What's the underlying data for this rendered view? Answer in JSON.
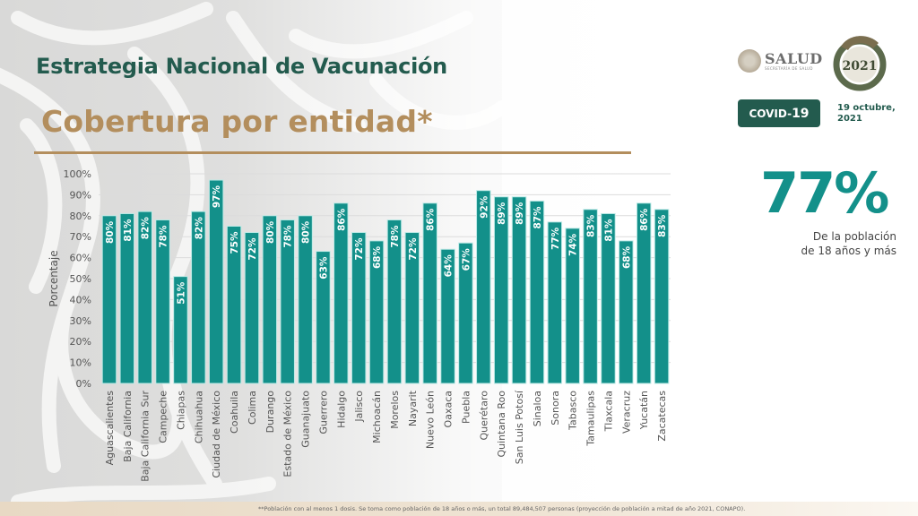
{
  "header": {
    "title": "Estrategia Nacional de Vacunación",
    "subtitle": "Cobertura por entidad*"
  },
  "logos": {
    "salud_word": "SALUD",
    "salud_small": "SECRETARÍA DE SALUD",
    "mexico_year": "2021"
  },
  "badge": {
    "prefix": "COVID-",
    "number": "19"
  },
  "date": {
    "line1": "19 octubre,",
    "line2": "2021"
  },
  "kpi": {
    "value": "77%",
    "caption_line1": "De la población",
    "caption_line2": "de 18 años y más"
  },
  "footnote": "**Población con al menos 1 dosis. Se toma como población de 18 años o más, un total 89,484,507 personas (proyección de población a mitad de año 2021, CONAPO).",
  "colors": {
    "bar": "#13908a",
    "title_green": "#235b4e",
    "gold": "#b38e5d",
    "badge_bg": "#235b4e"
  },
  "chart_data": {
    "type": "bar",
    "title": "Cobertura por entidad*",
    "xlabel": "",
    "ylabel": "Porcentaje",
    "ylim": [
      0,
      100
    ],
    "yticks": [
      "0%",
      "10%",
      "20%",
      "30%",
      "40%",
      "50%",
      "60%",
      "70%",
      "80%",
      "90%",
      "100%"
    ],
    "grid": true,
    "legend": null,
    "value_labels_rotated": true,
    "categories": [
      "Aguascalientes",
      "Baja California",
      "Baja California Sur",
      "Campeche",
      "Chiapas",
      "Chihuahua",
      "Ciudad de México",
      "Coahuila",
      "Colima",
      "Durango",
      "Estado de México",
      "Guanajuato",
      "Guerrero",
      "Hidalgo",
      "Jalisco",
      "Michoacán",
      "Morelos",
      "Nayarit",
      "Nuevo León",
      "Oaxaca",
      "Puebla",
      "Querétaro",
      "Quintana Roo",
      "San Luis Potosí",
      "Sinaloa",
      "Sonora",
      "Tabasco",
      "Tamaulipas",
      "Tlaxcala",
      "Veracruz",
      "Yucatán",
      "Zacatecas"
    ],
    "values": [
      80,
      81,
      82,
      78,
      51,
      82,
      97,
      75,
      72,
      80,
      78,
      80,
      63,
      86,
      72,
      68,
      78,
      72,
      86,
      64,
      67,
      92,
      89,
      89,
      87,
      77,
      74,
      83,
      81,
      68,
      86,
      83
    ],
    "value_labels": [
      "80%",
      "81%",
      "82%",
      "78%",
      "51%",
      "82%",
      "97%",
      "75%",
      "72%",
      "80%",
      "78%",
      "80%",
      "63%",
      "86%",
      "72%",
      "68%",
      "78%",
      "72%",
      "86%",
      "64%",
      "67%",
      "92%",
      "89%",
      "89%",
      "87%",
      "77%",
      "74%",
      "83%",
      "81%",
      "68%",
      "86%",
      "83%"
    ]
  }
}
